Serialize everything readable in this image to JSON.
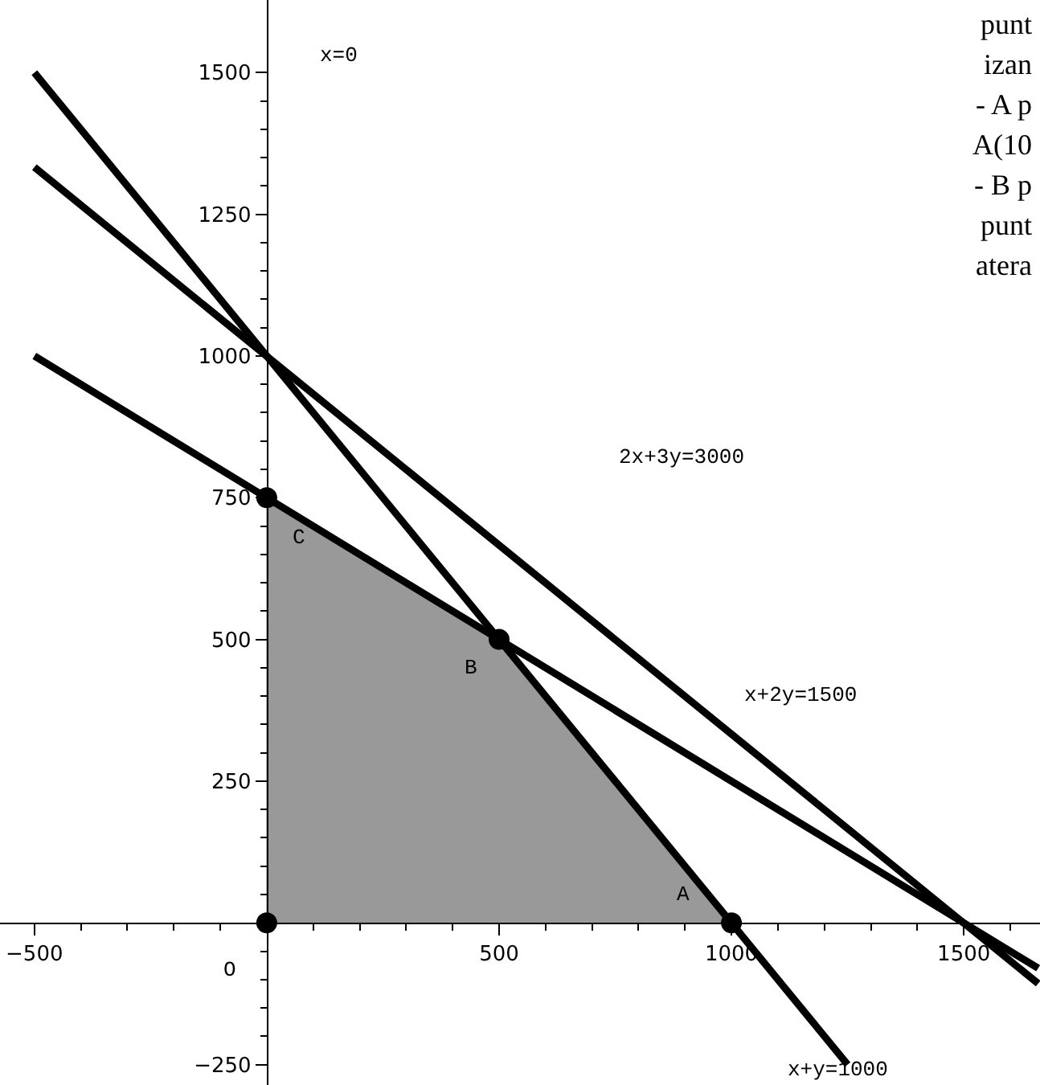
{
  "chart_data": {
    "type": "line",
    "xlim": [
      -574,
      1664
    ],
    "ylim": [
      -286,
      1628
    ],
    "xticks": [
      {
        "value": -500,
        "label": "−500"
      },
      {
        "value": -400,
        "label": null
      },
      {
        "value": -300,
        "label": null
      },
      {
        "value": -200,
        "label": null
      },
      {
        "value": -100,
        "label": null
      },
      {
        "value": 100,
        "label": null
      },
      {
        "value": 200,
        "label": null
      },
      {
        "value": 300,
        "label": null
      },
      {
        "value": 400,
        "label": null
      },
      500,
      {
        "value": 600,
        "label": null
      },
      {
        "value": 700,
        "label": null
      },
      {
        "value": 800,
        "label": null
      },
      {
        "value": 900,
        "label": null
      },
      1000,
      {
        "value": 1100,
        "label": null
      },
      {
        "value": 1200,
        "label": null
      },
      {
        "value": 1300,
        "label": null
      },
      {
        "value": 1400,
        "label": null
      },
      1500,
      {
        "value": 1600,
        "label": null
      }
    ],
    "yticks": [
      {
        "value": -250,
        "label": "−250"
      },
      {
        "value": -200,
        "label": null
      },
      {
        "value": -150,
        "label": null
      },
      {
        "value": -100,
        "label": null
      },
      {
        "value": -50,
        "label": null
      },
      {
        "value": 50,
        "label": null
      },
      {
        "value": 100,
        "label": null
      },
      {
        "value": 150,
        "label": null
      },
      {
        "value": 200,
        "label": null
      },
      250,
      {
        "value": 300,
        "label": null
      },
      {
        "value": 350,
        "label": null
      },
      {
        "value": 400,
        "label": null
      },
      {
        "value": 450,
        "label": null
      },
      500,
      {
        "value": 550,
        "label": null
      },
      {
        "value": 600,
        "label": null
      },
      {
        "value": 650,
        "label": null
      },
      {
        "value": 700,
        "label": null
      },
      750,
      {
        "value": 800,
        "label": null
      },
      {
        "value": 850,
        "label": null
      },
      {
        "value": 900,
        "label": null
      },
      {
        "value": 950,
        "label": null
      },
      1000,
      {
        "value": 1050,
        "label": null
      },
      {
        "value": 1100,
        "label": null
      },
      {
        "value": 1150,
        "label": null
      },
      {
        "value": 1200,
        "label": null
      },
      1250,
      {
        "value": 1300,
        "label": null
      },
      {
        "value": 1350,
        "label": null
      },
      {
        "value": 1400,
        "label": null
      },
      {
        "value": 1450,
        "label": null
      },
      1500
    ],
    "series": [
      {
        "type": "area",
        "color": "#999999",
        "x": [
          0,
          0,
          500,
          1000
        ],
        "values": [
          0,
          750,
          500,
          0
        ]
      },
      {
        "color": "#000000",
        "x": [
          -500,
          1250
        ],
        "values": [
          1500,
          -250
        ]
      },
      {
        "color": "#000000",
        "x": [
          -500,
          1660
        ],
        "values": [
          1333,
          -107
        ]
      },
      {
        "color": "#000000",
        "x": [
          -500,
          1660
        ],
        "values": [
          1000,
          -80
        ]
      },
      {
        "type": "scatter",
        "marker": "circle",
        "color": "#000000",
        "x": [
          0,
          1000,
          500,
          0
        ],
        "values": [
          0,
          0,
          500,
          750
        ]
      }
    ],
    "annotations": [
      "x=0",
      "2x+3y=3000",
      "x+2y=1500",
      "x+y=1000",
      {
        "text": "C",
        "x": 0,
        "y": 750
      },
      {
        "text": "B",
        "x": 500,
        "y": 500
      },
      {
        "text": "A",
        "x": 1000,
        "y": 0
      },
      "O",
      "punt",
      "izan",
      "- A p",
      "A(10",
      "- B p",
      "punt",
      "atera"
    ]
  }
}
